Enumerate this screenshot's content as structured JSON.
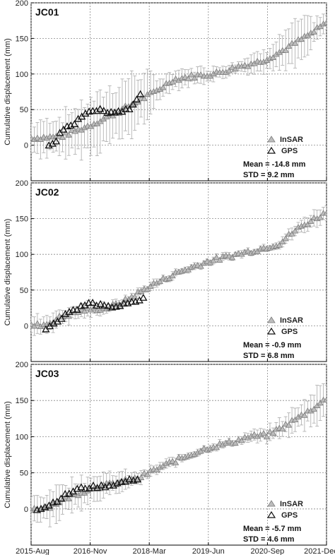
{
  "chart_data": [
    {
      "type": "scatter",
      "title": "JC01",
      "ylabel": "Cumulative displacement (mm)",
      "ylim": [
        -50,
        200
      ],
      "yticks": [
        0,
        50,
        100,
        150,
        200
      ],
      "xticks": [
        "2015-Aug",
        "2016-Nov",
        "2018-Mar",
        "2019-Jun",
        "2020-Sep",
        "2021-Dec"
      ],
      "grid": true,
      "legend_position": "bottom-right",
      "series": [
        {
          "name": "InSAR",
          "color": "#9a9a9a",
          "marker": "triangle",
          "errorbars": true,
          "anchors": [
            [
              0.0,
              10
            ],
            [
              0.1,
              12
            ],
            [
              0.2,
              28
            ],
            [
              0.3,
              48
            ],
            [
              0.42,
              75
            ],
            [
              0.48,
              92
            ],
            [
              0.55,
              97
            ],
            [
              0.62,
              100
            ],
            [
              0.7,
              110
            ],
            [
              0.78,
              118
            ],
            [
              0.84,
              130
            ],
            [
              0.9,
              145
            ],
            [
              0.96,
              160
            ],
            [
              1.0,
              172
            ]
          ],
          "err_anchors": [
            [
              0.0,
              20
            ],
            [
              0.2,
              35
            ],
            [
              0.35,
              40
            ],
            [
              0.45,
              12
            ],
            [
              0.7,
              8
            ],
            [
              0.8,
              15
            ],
            [
              0.9,
              28
            ],
            [
              1.0,
              10
            ]
          ]
        },
        {
          "name": "GPS",
          "color": "#111111",
          "marker": "triangle-open",
          "anchors": [
            [
              0.06,
              -2
            ],
            [
              0.08,
              3
            ],
            [
              0.1,
              20
            ],
            [
              0.14,
              28
            ],
            [
              0.18,
              45
            ],
            [
              0.22,
              50
            ],
            [
              0.26,
              47
            ],
            [
              0.3,
              47
            ],
            [
              0.34,
              52
            ],
            [
              0.37,
              72
            ]
          ]
        }
      ],
      "stats": {
        "mean": "Mean = -14.8 mm",
        "std": "STD = 9.2 mm"
      }
    },
    {
      "type": "scatter",
      "title": "JC02",
      "ylabel": "Cumulative displacement (mm)",
      "ylim": [
        -50,
        200
      ],
      "yticks": [
        0,
        50,
        100,
        150,
        200
      ],
      "xticks": [
        "2015-Aug",
        "2016-Nov",
        "2018-Mar",
        "2019-Jun",
        "2020-Sep",
        "2021-Dec"
      ],
      "grid": true,
      "legend_position": "bottom-right",
      "series": [
        {
          "name": "InSAR",
          "color": "#9a9a9a",
          "marker": "triangle",
          "errorbars": true,
          "anchors": [
            [
              0.0,
              0
            ],
            [
              0.05,
              2
            ],
            [
              0.1,
              12
            ],
            [
              0.18,
              22
            ],
            [
              0.26,
              25
            ],
            [
              0.32,
              35
            ],
            [
              0.4,
              55
            ],
            [
              0.5,
              75
            ],
            [
              0.6,
              90
            ],
            [
              0.7,
              100
            ],
            [
              0.78,
              108
            ],
            [
              0.84,
              115
            ],
            [
              0.9,
              135
            ],
            [
              0.96,
              150
            ],
            [
              1.0,
              158
            ]
          ],
          "err_anchors": [
            [
              0.0,
              14
            ],
            [
              0.15,
              10
            ],
            [
              0.3,
              5
            ],
            [
              0.8,
              4
            ],
            [
              0.9,
              8
            ],
            [
              1.0,
              12
            ]
          ]
        },
        {
          "name": "GPS",
          "color": "#111111",
          "marker": "triangle-open",
          "anchors": [
            [
              0.05,
              -3
            ],
            [
              0.08,
              3
            ],
            [
              0.12,
              18
            ],
            [
              0.16,
              25
            ],
            [
              0.2,
              32
            ],
            [
              0.26,
              26
            ],
            [
              0.3,
              28
            ],
            [
              0.34,
              32
            ],
            [
              0.38,
              38
            ]
          ]
        }
      ],
      "stats": {
        "mean": "Mean = -0.9 mm",
        "std": "STD = 6.8 mm"
      }
    },
    {
      "type": "scatter",
      "title": "JC03",
      "ylabel": "Cumulative displacement (mm)",
      "ylim": [
        -50,
        200
      ],
      "yticks": [
        0,
        50,
        100,
        150,
        200
      ],
      "xticks": [
        "2015-Aug",
        "2016-Nov",
        "2018-Mar",
        "2019-Jun",
        "2020-Sep",
        "2021-Dec"
      ],
      "grid": true,
      "legend_position": "bottom-right",
      "series": [
        {
          "name": "InSAR",
          "color": "#9a9a9a",
          "marker": "triangle",
          "errorbars": true,
          "anchors": [
            [
              0.0,
              0
            ],
            [
              0.06,
              3
            ],
            [
              0.12,
              15
            ],
            [
              0.2,
              28
            ],
            [
              0.28,
              35
            ],
            [
              0.36,
              42
            ],
            [
              0.44,
              58
            ],
            [
              0.52,
              72
            ],
            [
              0.6,
              85
            ],
            [
              0.68,
              92
            ],
            [
              0.74,
              100
            ],
            [
              0.8,
              102
            ],
            [
              0.86,
              115
            ],
            [
              0.92,
              130
            ],
            [
              1.0,
              152
            ]
          ],
          "err_anchors": [
            [
              0.0,
              16
            ],
            [
              0.1,
              22
            ],
            [
              0.25,
              16
            ],
            [
              0.4,
              6
            ],
            [
              0.7,
              4
            ],
            [
              0.82,
              10
            ],
            [
              0.92,
              18
            ],
            [
              1.0,
              26
            ]
          ]
        },
        {
          "name": "GPS",
          "color": "#111111",
          "marker": "triangle-open",
          "anchors": [
            [
              0.02,
              0
            ],
            [
              0.05,
              3
            ],
            [
              0.08,
              10
            ],
            [
              0.12,
              20
            ],
            [
              0.16,
              28
            ],
            [
              0.2,
              30
            ],
            [
              0.26,
              32
            ],
            [
              0.32,
              38
            ],
            [
              0.36,
              42
            ]
          ]
        }
      ],
      "stats": {
        "mean": "Mean = -5.7 mm",
        "std": "STD = 4.6 mm"
      }
    }
  ]
}
